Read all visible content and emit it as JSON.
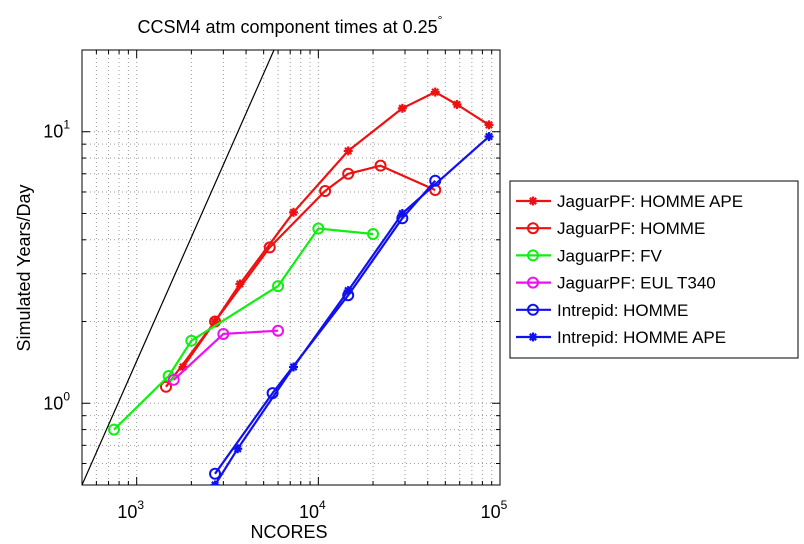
{
  "chart_data": {
    "type": "line",
    "title": "CCSM4 atm component times at 0.25",
    "title_superscript": "°",
    "xlabel": "NCORES",
    "ylabel": "Simulated Years/Day",
    "xscale": "log",
    "yscale": "log",
    "xlim": [
      500,
      100000
    ],
    "ylim": [
      0.5,
      20
    ],
    "grid": true,
    "legend_position": "outside-right",
    "x_ticks": [
      {
        "value": 1000,
        "base": "10",
        "exp": "3"
      },
      {
        "value": 10000,
        "base": "10",
        "exp": "4"
      },
      {
        "value": 100000,
        "base": "10",
        "exp": "5"
      }
    ],
    "y_ticks": [
      {
        "value": 1,
        "base": "10",
        "exp": "0"
      },
      {
        "value": 10,
        "base": "10",
        "exp": "1"
      }
    ],
    "reference_line": {
      "color": "#000000",
      "points": [
        [
          500,
          0.5
        ],
        [
          5700,
          20
        ]
      ]
    },
    "series": [
      {
        "name": "JaguarPF: HOMME APE",
        "color": "#ee1111",
        "marker": "star",
        "points": [
          [
            1800,
            1.36
          ],
          [
            2700,
            2.0
          ],
          [
            3700,
            2.75
          ],
          [
            7300,
            5.05
          ],
          [
            14600,
            8.5
          ],
          [
            29000,
            12.2
          ],
          [
            44000,
            14.0
          ],
          [
            58000,
            12.6
          ],
          [
            87000,
            10.6
          ]
        ]
      },
      {
        "name": "JaguarPF: HOMME",
        "color": "#ee1111",
        "marker": "circle",
        "points": [
          [
            1450,
            1.15
          ],
          [
            2700,
            2.0
          ],
          [
            5400,
            3.75
          ],
          [
            10900,
            6.05
          ],
          [
            14600,
            7.0
          ],
          [
            22000,
            7.5
          ],
          [
            44000,
            6.1
          ]
        ]
      },
      {
        "name": "JaguarPF: FV",
        "color": "#11ee11",
        "marker": "circle",
        "points": [
          [
            750,
            0.8
          ],
          [
            1500,
            1.26
          ],
          [
            2000,
            1.7
          ],
          [
            6000,
            2.7
          ],
          [
            10000,
            4.4
          ],
          [
            20000,
            4.2
          ]
        ]
      },
      {
        "name": "JaguarPF: EUL T340",
        "color": "#ee11ee",
        "marker": "circle",
        "points": [
          [
            1600,
            1.22
          ],
          [
            3000,
            1.8
          ],
          [
            6000,
            1.85
          ]
        ]
      },
      {
        "name": "Intrepid: HOMME",
        "color": "#1111ee",
        "marker": "circle",
        "points": [
          [
            2700,
            0.55
          ],
          [
            5600,
            1.09
          ],
          [
            14600,
            2.5
          ],
          [
            29000,
            4.8
          ],
          [
            44000,
            6.6
          ]
        ]
      },
      {
        "name": "Intrepid: HOMME APE",
        "color": "#1111ee",
        "marker": "star",
        "points": [
          [
            2700,
            0.5
          ],
          [
            3600,
            0.68
          ],
          [
            7300,
            1.36
          ],
          [
            14600,
            2.6
          ],
          [
            29000,
            5.0
          ],
          [
            87000,
            9.6
          ]
        ]
      }
    ]
  }
}
